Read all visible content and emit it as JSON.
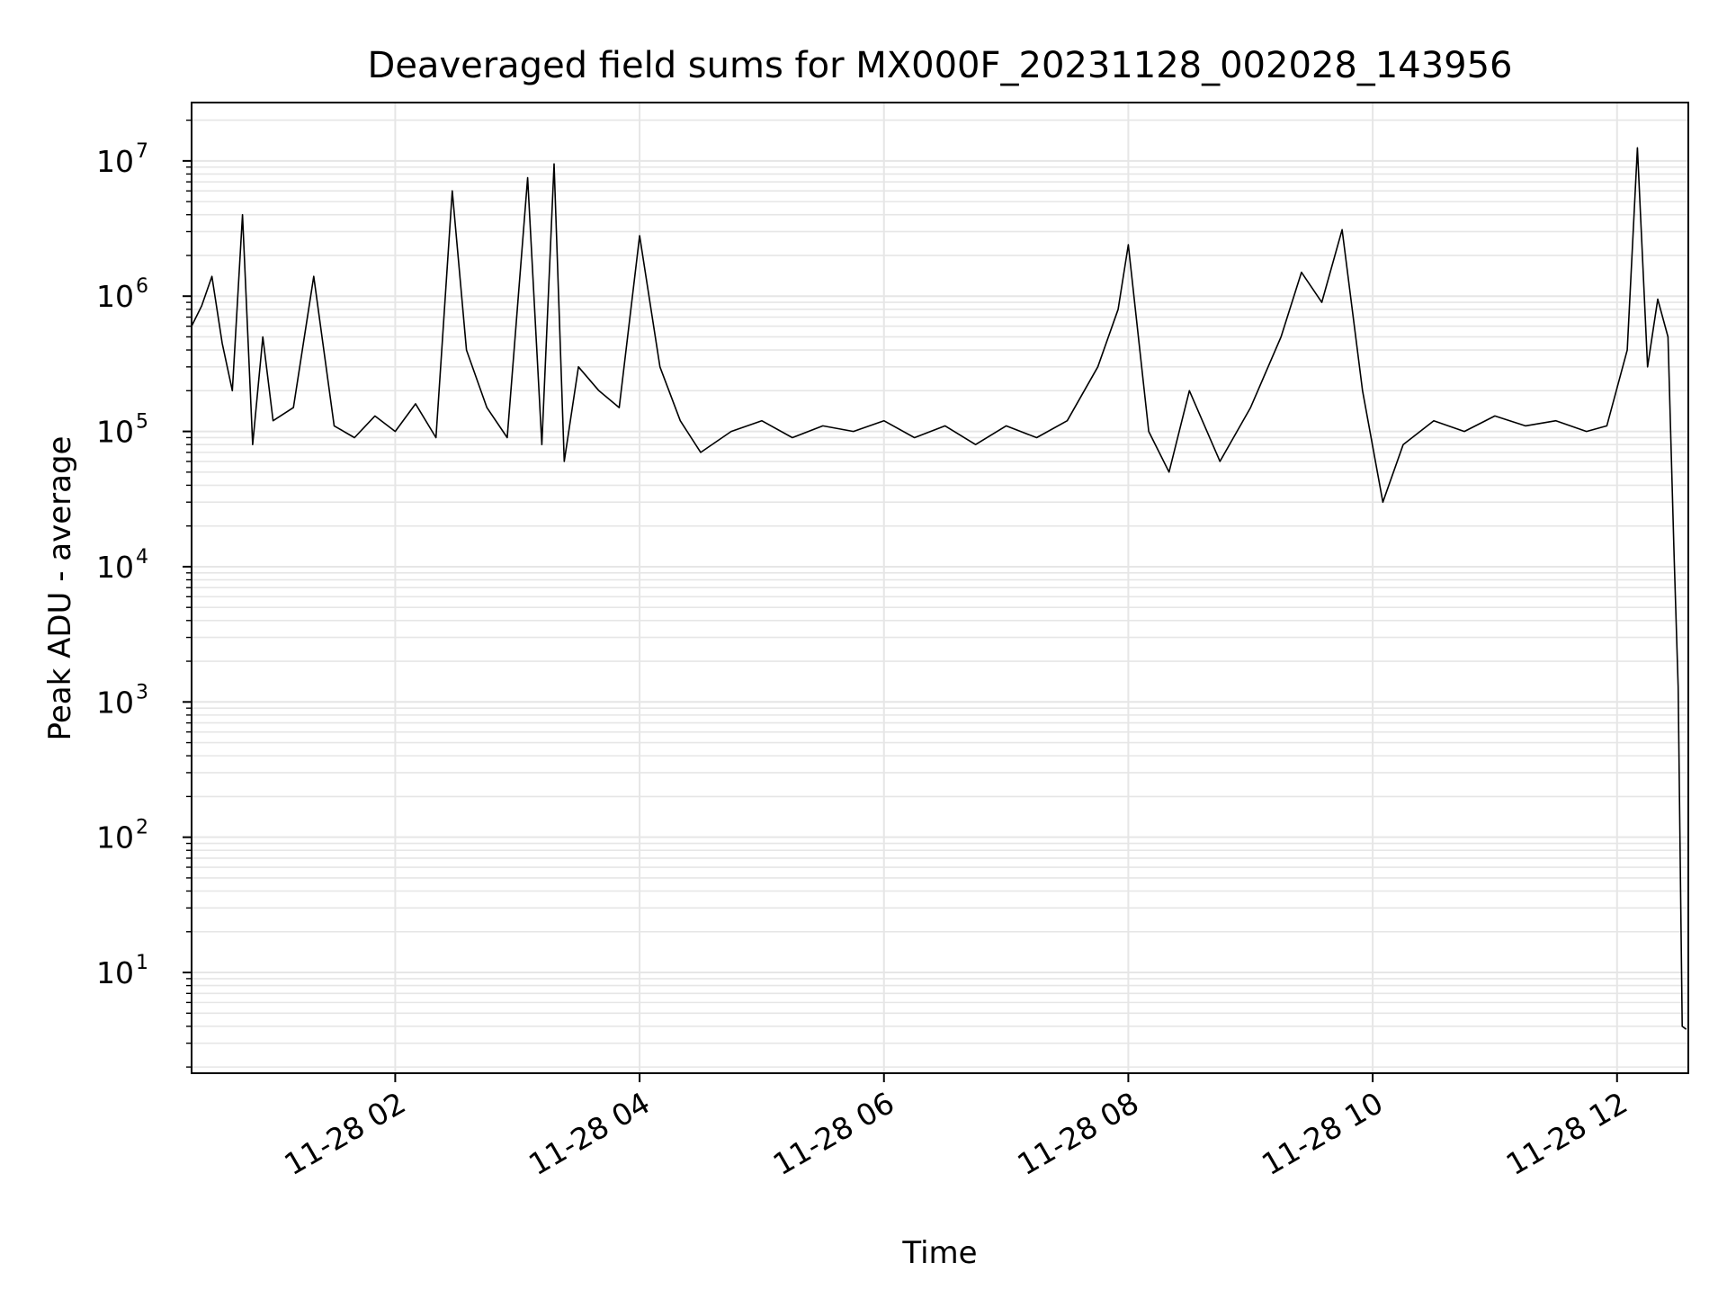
{
  "chart_data": {
    "type": "line",
    "title": "Deaveraged field sums for MX000F_20231128_002028_143956",
    "xlabel": "Time",
    "ylabel": "Peak ADU - average",
    "y_scale": "log",
    "grid": "major and minor",
    "line_color": "#000000",
    "grid_color": "#e6e6e6",
    "xlim": [
      "2023-11-28 00:20",
      "2023-11-28 12:35"
    ],
    "ylim": [
      1.8,
      27000000
    ],
    "x_ticks": [
      {
        "value": "2023-11-28 02:00",
        "label": "11-28 02"
      },
      {
        "value": "2023-11-28 04:00",
        "label": "11-28 04"
      },
      {
        "value": "2023-11-28 06:00",
        "label": "11-28 06"
      },
      {
        "value": "2023-11-28 08:00",
        "label": "11-28 08"
      },
      {
        "value": "2023-11-28 10:00",
        "label": "11-28 10"
      },
      {
        "value": "2023-11-28 12:00",
        "label": "11-28 12"
      }
    ],
    "y_ticks": [
      {
        "value": 10,
        "base": "10",
        "exp": "1"
      },
      {
        "value": 100,
        "base": "10",
        "exp": "2"
      },
      {
        "value": 1000,
        "base": "10",
        "exp": "3"
      },
      {
        "value": 10000,
        "base": "10",
        "exp": "4"
      },
      {
        "value": 100000,
        "base": "10",
        "exp": "5"
      },
      {
        "value": 1000000,
        "base": "10",
        "exp": "6"
      },
      {
        "value": 10000000,
        "base": "10",
        "exp": "7"
      }
    ],
    "series": [
      {
        "x": [
          "2023-11-28 00:20",
          "2023-11-28 00:25",
          "2023-11-28 00:30",
          "2023-11-28 00:35",
          "2023-11-28 00:40",
          "2023-11-28 00:45",
          "2023-11-28 00:50",
          "2023-11-28 00:55",
          "2023-11-28 01:00",
          "2023-11-28 01:10",
          "2023-11-28 01:20",
          "2023-11-28 01:30",
          "2023-11-28 01:40",
          "2023-11-28 01:50",
          "2023-11-28 02:00",
          "2023-11-28 02:10",
          "2023-11-28 02:20",
          "2023-11-28 02:28",
          "2023-11-28 02:35",
          "2023-11-28 02:45",
          "2023-11-28 02:55",
          "2023-11-28 03:05",
          "2023-11-28 03:12",
          "2023-11-28 03:18",
          "2023-11-28 03:23",
          "2023-11-28 03:30",
          "2023-11-28 03:40",
          "2023-11-28 03:50",
          "2023-11-28 04:00",
          "2023-11-28 04:10",
          "2023-11-28 04:20",
          "2023-11-28 04:30",
          "2023-11-28 04:45",
          "2023-11-28 05:00",
          "2023-11-28 05:15",
          "2023-11-28 05:30",
          "2023-11-28 05:45",
          "2023-11-28 06:00",
          "2023-11-28 06:15",
          "2023-11-28 06:30",
          "2023-11-28 06:45",
          "2023-11-28 07:00",
          "2023-11-28 07:15",
          "2023-11-28 07:30",
          "2023-11-28 07:45",
          "2023-11-28 07:55",
          "2023-11-28 08:00",
          "2023-11-28 08:10",
          "2023-11-28 08:20",
          "2023-11-28 08:30",
          "2023-11-28 08:45",
          "2023-11-28 09:00",
          "2023-11-28 09:15",
          "2023-11-28 09:25",
          "2023-11-28 09:35",
          "2023-11-28 09:45",
          "2023-11-28 09:55",
          "2023-11-28 10:05",
          "2023-11-28 10:15",
          "2023-11-28 10:30",
          "2023-11-28 10:45",
          "2023-11-28 11:00",
          "2023-11-28 11:15",
          "2023-11-28 11:30",
          "2023-11-28 11:45",
          "2023-11-28 11:55",
          "2023-11-28 12:05",
          "2023-11-28 12:10",
          "2023-11-28 12:15",
          "2023-11-28 12:20",
          "2023-11-28 12:25",
          "2023-11-28 12:28",
          "2023-11-28 12:30",
          "2023-11-28 12:32",
          "2023-11-28 12:34"
        ],
        "y": [
          600000,
          850000,
          1400000,
          450000,
          200000,
          4000000,
          80000,
          500000,
          120000,
          150000,
          1400000,
          110000,
          90000,
          130000,
          100000,
          160000,
          90000,
          6000000,
          400000,
          150000,
          90000,
          7500000,
          80000,
          9500000,
          60000,
          300000,
          200000,
          150000,
          2800000,
          300000,
          120000,
          70000,
          100000,
          120000,
          90000,
          110000,
          100000,
          120000,
          90000,
          110000,
          80000,
          110000,
          90000,
          120000,
          300000,
          800000,
          2400000,
          100000,
          50000,
          200000,
          60000,
          150000,
          500000,
          1500000,
          900000,
          3100000,
          200000,
          30000,
          80000,
          120000,
          100000,
          130000,
          110000,
          120000,
          100000,
          110000,
          400000,
          12500000,
          300000,
          950000,
          500000,
          12000,
          1300,
          4,
          3.8
        ]
      }
    ]
  }
}
